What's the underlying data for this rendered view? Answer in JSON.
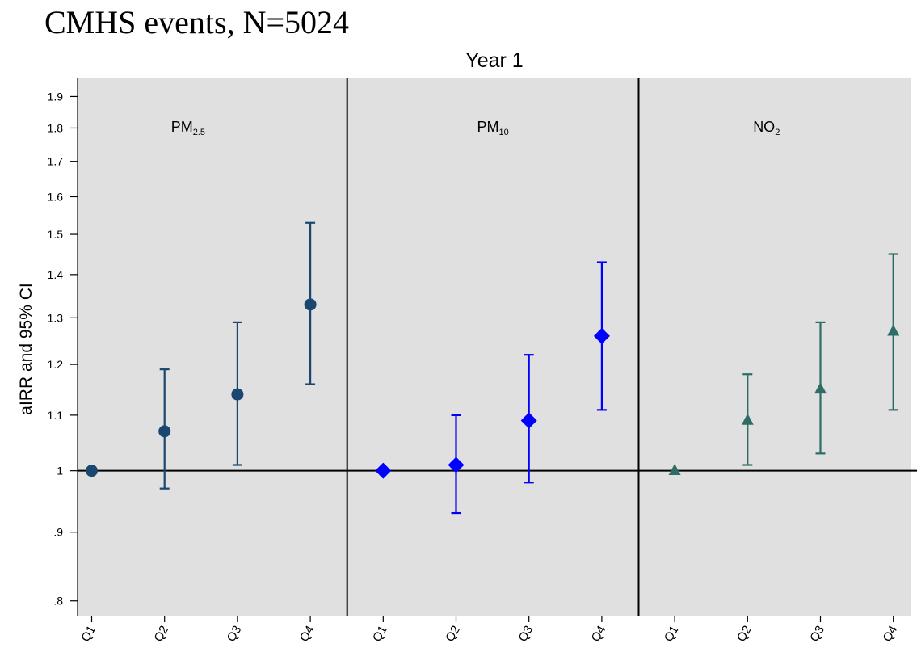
{
  "page": {
    "title": "CMHS events, N=5024"
  },
  "chart_data": {
    "type": "scatter",
    "title": "Year 1",
    "ylabel": "aIRR and 95% CI",
    "xlabel": "",
    "y_scale": "log",
    "ylim": [
      0.78,
      1.96
    ],
    "y_ticks": [
      {
        "value": 0.8,
        "label": ".8"
      },
      {
        "value": 0.9,
        "label": ".9"
      },
      {
        "value": 1.0,
        "label": "1"
      },
      {
        "value": 1.1,
        "label": "1.1"
      },
      {
        "value": 1.2,
        "label": "1.2"
      },
      {
        "value": 1.3,
        "label": "1.3"
      },
      {
        "value": 1.4,
        "label": "1.4"
      },
      {
        "value": 1.5,
        "label": "1.5"
      },
      {
        "value": 1.6,
        "label": "1.6"
      },
      {
        "value": 1.7,
        "label": "1.7"
      },
      {
        "value": 1.8,
        "label": "1.8"
      },
      {
        "value": 1.9,
        "label": "1.9"
      }
    ],
    "reference_line": 1.0,
    "grid": false,
    "background_color": "#e0e0e0",
    "categories": [
      "Q1",
      "Q2",
      "Q3",
      "Q4"
    ],
    "panels": [
      {
        "label_main": "PM",
        "label_sub": "2.5",
        "marker": "circle",
        "color": "#1a476f",
        "estimates": [
          1.0,
          1.07,
          1.14,
          1.33
        ],
        "ci_low": [
          null,
          0.97,
          1.01,
          1.16
        ],
        "ci_high": [
          null,
          1.19,
          1.29,
          1.53
        ]
      },
      {
        "label_main": "PM",
        "label_sub": "10",
        "marker": "diamond",
        "color": "#0000ff",
        "estimates": [
          1.0,
          1.01,
          1.09,
          1.26
        ],
        "ci_low": [
          null,
          0.93,
          0.98,
          1.11
        ],
        "ci_high": [
          null,
          1.1,
          1.22,
          1.43
        ]
      },
      {
        "label_main": "NO",
        "label_sub": "2",
        "marker": "triangle",
        "color": "#2d6d66",
        "estimates": [
          1.0,
          1.09,
          1.15,
          1.27
        ],
        "ci_low": [
          null,
          1.01,
          1.03,
          1.11
        ],
        "ci_high": [
          null,
          1.18,
          1.29,
          1.45
        ]
      }
    ]
  }
}
